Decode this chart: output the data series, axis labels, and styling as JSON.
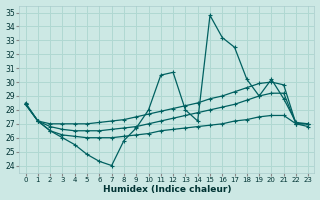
{
  "xlabel": "Humidex (Indice chaleur)",
  "bg_color": "#cce8e4",
  "grid_color": "#b0d8d2",
  "line_color": "#006060",
  "xlim": [
    -0.5,
    23.5
  ],
  "ylim": [
    23.5,
    35.5
  ],
  "xticks": [
    0,
    1,
    2,
    3,
    4,
    5,
    6,
    7,
    8,
    9,
    10,
    11,
    12,
    13,
    14,
    15,
    16,
    17,
    18,
    19,
    20,
    21,
    22,
    23
  ],
  "yticks": [
    24,
    25,
    26,
    27,
    28,
    29,
    30,
    31,
    32,
    33,
    34,
    35
  ],
  "line1_x": [
    0,
    1,
    2,
    3,
    4,
    5,
    6,
    7,
    8,
    9,
    10,
    11,
    12,
    13,
    14,
    15,
    16,
    17,
    18,
    19,
    20,
    21,
    22,
    23
  ],
  "line1_y": [
    28.5,
    27.2,
    26.5,
    26.0,
    25.5,
    24.8,
    24.3,
    24.0,
    25.8,
    26.7,
    28.0,
    30.5,
    30.7,
    28.0,
    27.2,
    34.8,
    33.2,
    32.5,
    30.2,
    29.0,
    30.2,
    28.8,
    27.1,
    27.0
  ],
  "line2_x": [
    0,
    1,
    2,
    3,
    4,
    5,
    6,
    7,
    8,
    9,
    10,
    11,
    12,
    13,
    14,
    15,
    16,
    17,
    18,
    19,
    20,
    21,
    22,
    23
  ],
  "line2_y": [
    28.4,
    27.2,
    27.0,
    27.0,
    27.0,
    27.0,
    27.1,
    27.2,
    27.3,
    27.5,
    27.7,
    27.9,
    28.1,
    28.3,
    28.5,
    28.8,
    29.0,
    29.3,
    29.6,
    29.9,
    30.0,
    29.8,
    27.0,
    27.0
  ],
  "line3_x": [
    0,
    1,
    2,
    3,
    4,
    5,
    6,
    7,
    8,
    9,
    10,
    11,
    12,
    13,
    14,
    15,
    16,
    17,
    18,
    19,
    20,
    21,
    22,
    23
  ],
  "line3_y": [
    28.4,
    27.2,
    26.8,
    26.6,
    26.5,
    26.5,
    26.5,
    26.6,
    26.7,
    26.8,
    27.0,
    27.2,
    27.4,
    27.6,
    27.8,
    28.0,
    28.2,
    28.4,
    28.7,
    29.0,
    29.2,
    29.2,
    27.0,
    27.0
  ],
  "line4_x": [
    0,
    1,
    2,
    3,
    4,
    5,
    6,
    7,
    8,
    9,
    10,
    11,
    12,
    13,
    14,
    15,
    16,
    17,
    18,
    19,
    20,
    21,
    22,
    23
  ],
  "line4_y": [
    28.4,
    27.2,
    26.5,
    26.2,
    26.1,
    26.0,
    26.0,
    26.0,
    26.1,
    26.2,
    26.3,
    26.5,
    26.6,
    26.7,
    26.8,
    26.9,
    27.0,
    27.2,
    27.3,
    27.5,
    27.6,
    27.6,
    27.0,
    26.8
  ]
}
